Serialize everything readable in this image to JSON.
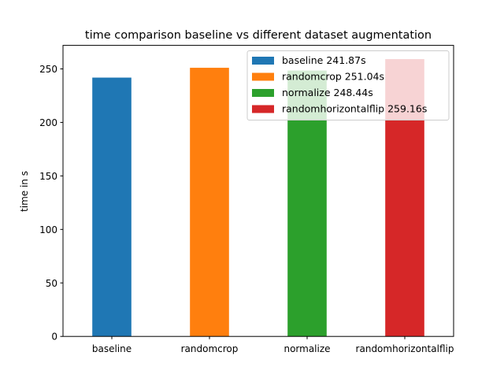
{
  "chart_data": {
    "type": "bar",
    "title": "time comparison baseline vs different dataset augmentation",
    "xlabel": "",
    "ylabel": "time in s",
    "categories": [
      "baseline",
      "randomcrop",
      "normalize",
      "randomhorizontalflip"
    ],
    "values": [
      241.87,
      251.04,
      248.44,
      259.16
    ],
    "colors": [
      "#1f77b4",
      "#ff7f0e",
      "#2ca02c",
      "#d62728"
    ],
    "ylim": [
      0,
      272
    ],
    "yticks": [
      0,
      50,
      100,
      150,
      200,
      250
    ],
    "grid": false,
    "legend": {
      "placement": "top-right",
      "entries": [
        "baseline 241.87s",
        "randomcrop 251.04s",
        "normalize 248.44s",
        "randomhorizontalflip 259.16s"
      ]
    }
  }
}
